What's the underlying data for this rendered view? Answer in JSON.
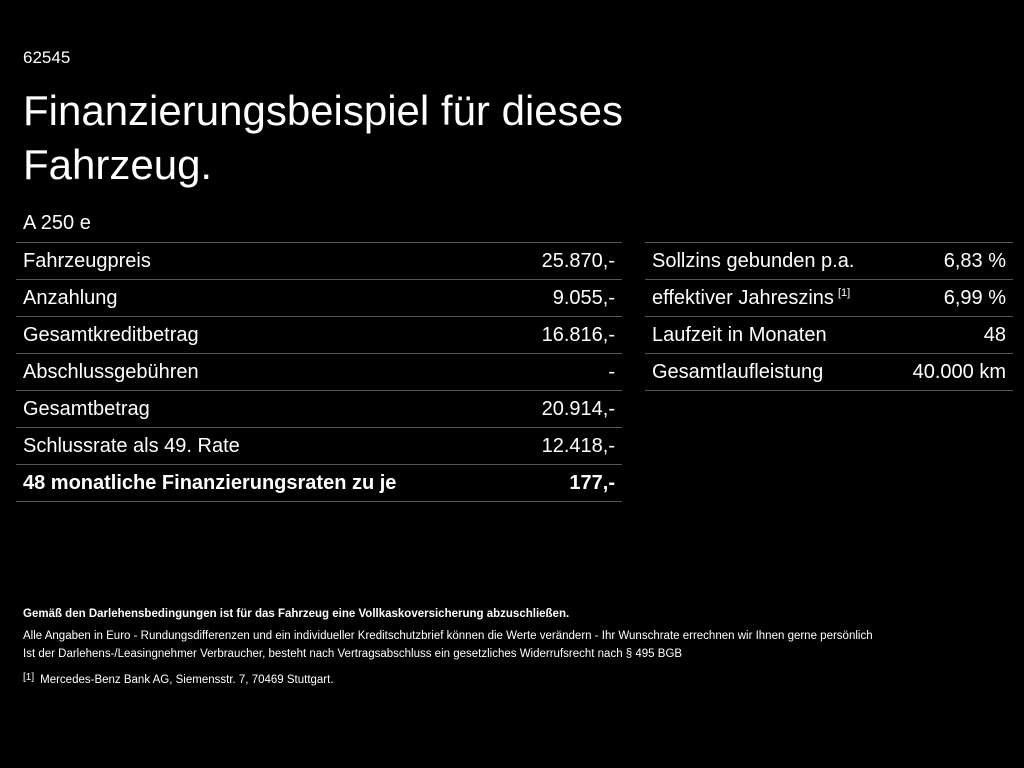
{
  "code": "62545",
  "title": "Finanzierungsbeispiel für dieses Fahrzeug.",
  "model": "A 250 e",
  "left_table": {
    "rows": [
      [
        "Fahrzeugpreis",
        "25.870,-"
      ],
      [
        "Anzahlung",
        "9.055,-"
      ],
      [
        "Gesamtkreditbetrag",
        "16.816,-"
      ],
      [
        "Abschlussgebühren",
        "-"
      ],
      [
        "Gesamtbetrag",
        "20.914,-"
      ],
      [
        "Schlussrate als 49. Rate",
        "12.418,-"
      ],
      [
        "48 monatliche Finanzierungsraten zu je",
        "177,-"
      ]
    ]
  },
  "right_table": {
    "rows": [
      {
        "label": "Sollzins gebunden p.a.",
        "value": "6,83 %"
      },
      {
        "label": "effektiver Jahreszins",
        "note": "[1]",
        "value": "6,99 %"
      },
      {
        "label": "Laufzeit in Monaten",
        "value": "48"
      },
      {
        "label": "Gesamtlaufleistung",
        "value": "40.000 km"
      }
    ]
  },
  "footnotes": {
    "bold": "Gemäß den Darlehensbedingungen ist für das Fahrzeug eine Vollkaskoversicherung abzuschließen.",
    "lines": [
      "Alle Angaben in Euro - Rundungsdifferenzen und ein individueller Kreditschutzbrief können die Werte verändern - Ihr Wunschrate errechnen wir Ihnen gerne persönlich",
      "Ist der Darlehens-/Leasingnehmer Verbraucher, besteht nach Vertragsabschluss ein gesetzliches Widerrufsrecht nach § 495 BGB"
    ],
    "ref": {
      "marker": "[1]",
      "text": "Mercedes-Benz Bank AG, Siemensstr. 7, 70469 Stuttgart."
    }
  }
}
